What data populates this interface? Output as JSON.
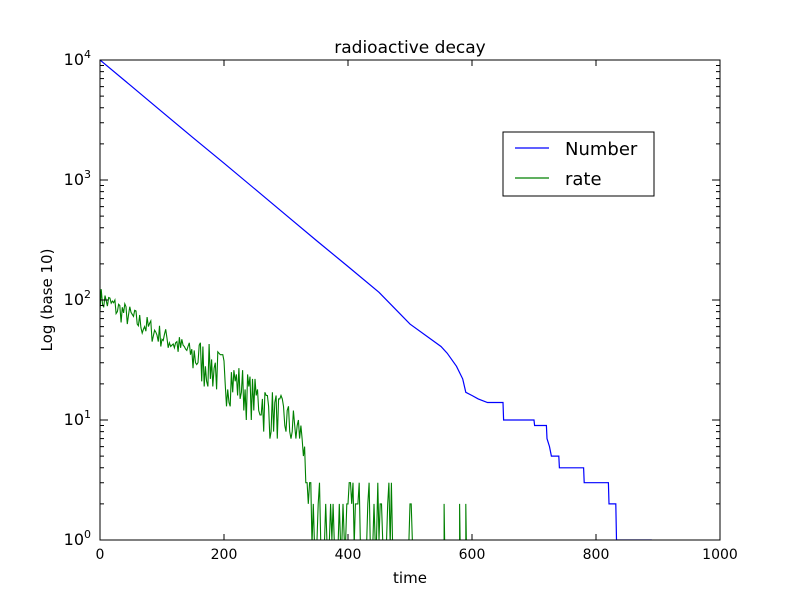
{
  "chart_data": {
    "type": "line",
    "title": "radioactive decay",
    "xlabel": "time",
    "ylabel": "Log (base 10)",
    "xlim": [
      0,
      1000
    ],
    "ylim": [
      1,
      10000
    ],
    "yscale": "log",
    "grid": false,
    "legend_placement": "upper-right",
    "x_ticks": [
      "0",
      "200",
      "400",
      "600",
      "800",
      "1000"
    ],
    "y_ticks": [
      {
        "base": "10",
        "exp": "0"
      },
      {
        "base": "10",
        "exp": "1"
      },
      {
        "base": "10",
        "exp": "2"
      },
      {
        "base": "10",
        "exp": "3"
      },
      {
        "base": "10",
        "exp": "4"
      }
    ],
    "series": [
      {
        "name": "Number",
        "color": "#0000ff",
        "style": "step",
        "points": [
          [
            0,
            10000
          ],
          [
            50,
            6100
          ],
          [
            100,
            3700
          ],
          [
            150,
            2250
          ],
          [
            200,
            1380
          ],
          [
            250,
            840
          ],
          [
            300,
            510
          ],
          [
            350,
            310
          ],
          [
            400,
            190
          ],
          [
            450,
            116
          ],
          [
            500,
            63
          ],
          [
            550,
            41
          ],
          [
            560,
            36
          ],
          [
            575,
            28
          ],
          [
            585,
            22
          ],
          [
            590,
            17
          ],
          [
            600,
            16
          ],
          [
            610,
            15
          ],
          [
            625,
            14
          ],
          [
            650,
            14
          ],
          [
            651,
            10
          ],
          [
            700,
            10
          ],
          [
            701,
            9
          ],
          [
            720,
            9
          ],
          [
            721,
            7
          ],
          [
            725,
            6
          ],
          [
            728,
            5
          ],
          [
            740,
            5
          ],
          [
            741,
            4
          ],
          [
            780,
            4
          ],
          [
            781,
            3
          ],
          [
            820,
            3
          ],
          [
            821,
            2
          ],
          [
            832,
            2
          ],
          [
            833,
            1
          ],
          [
            890,
            1
          ]
        ]
      },
      {
        "name": "rate",
        "color": "#008000",
        "style": "noisy",
        "trend": [
          [
            0,
            105
          ],
          [
            100,
            50
          ],
          [
            200,
            25
          ],
          [
            300,
            10
          ],
          [
            400,
            3
          ],
          [
            500,
            1.5
          ],
          [
            600,
            1
          ]
        ],
        "spikes": [
          [
            555,
            2
          ],
          [
            580,
            2
          ],
          [
            590,
            2
          ]
        ],
        "x_end": 600
      }
    ]
  }
}
